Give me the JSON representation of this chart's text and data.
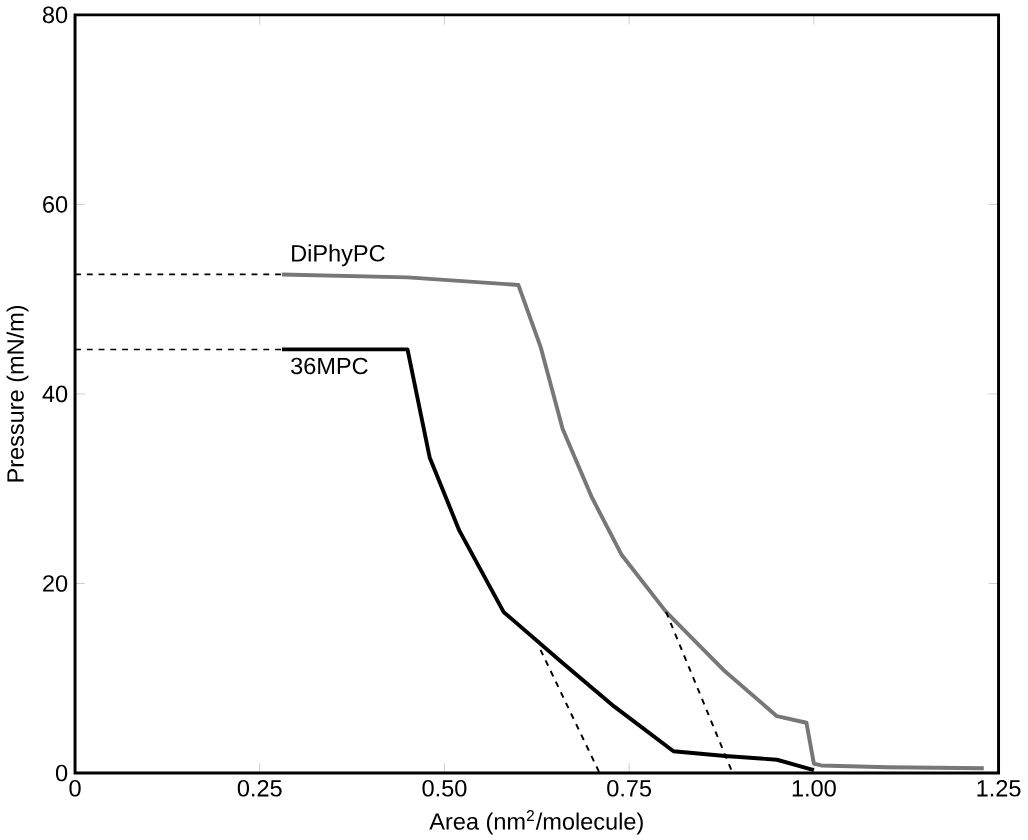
{
  "chart_data": {
    "type": "line",
    "xlabel": "Area (nm$^{2}$/molecule)",
    "ylabel": "Pressure (mN/m)",
    "xlim": [
      0,
      1.25
    ],
    "ylim": [
      0,
      80
    ],
    "xticks": [
      {
        "value": 0,
        "label": "0"
      },
      {
        "value": 0.25,
        "label": "0.25"
      },
      {
        "value": 0.5,
        "label": "0.50"
      },
      {
        "value": 0.75,
        "label": "0.75"
      },
      {
        "value": 1.0,
        "label": "1.00"
      },
      {
        "value": 1.25,
        "label": "1.25"
      }
    ],
    "yticks": [
      0,
      20,
      40,
      60,
      80
    ],
    "marker": "none",
    "series": [
      {
        "name": "DiPhyPC",
        "color": "#777777",
        "line_style": "solid",
        "x": [
          0.28,
          0.45,
          0.6,
          0.63,
          0.66,
          0.7,
          0.74,
          0.8,
          0.88,
          0.95,
          0.99,
          1.0,
          1.01,
          1.1,
          1.23
        ],
        "values": [
          52.6,
          52.3,
          51.5,
          45,
          36.3,
          29,
          23,
          17,
          10.7,
          6,
          5.3,
          1,
          0.8,
          0.6,
          0.5
        ]
      },
      {
        "name": "36MPC",
        "color": "#000000",
        "line_style": "solid",
        "x": [
          0.28,
          0.45,
          0.48,
          0.52,
          0.58,
          0.66,
          0.73,
          0.81,
          0.88,
          0.95,
          1.0
        ],
        "values": [
          44.7,
          44.7,
          33.3,
          25.6,
          17,
          11.6,
          7,
          2.3,
          1.8,
          1.4,
          0.3
        ]
      },
      {
        "color": "#000000",
        "line_style": "dashed",
        "x": [
          0,
          0.28
        ],
        "values": [
          52.6,
          52.6
        ]
      },
      {
        "color": "#000000",
        "line_style": "dashed",
        "x": [
          0,
          0.28
        ],
        "values": [
          44.7,
          44.7
        ]
      },
      {
        "color": "#000000",
        "line_style": "dashed",
        "x": [
          0.8,
          0.89
        ],
        "values": [
          17,
          0
        ]
      },
      {
        "color": "#000000",
        "line_style": "dashed",
        "x": [
          0.63,
          0.71
        ],
        "values": [
          13,
          0
        ]
      }
    ]
  }
}
